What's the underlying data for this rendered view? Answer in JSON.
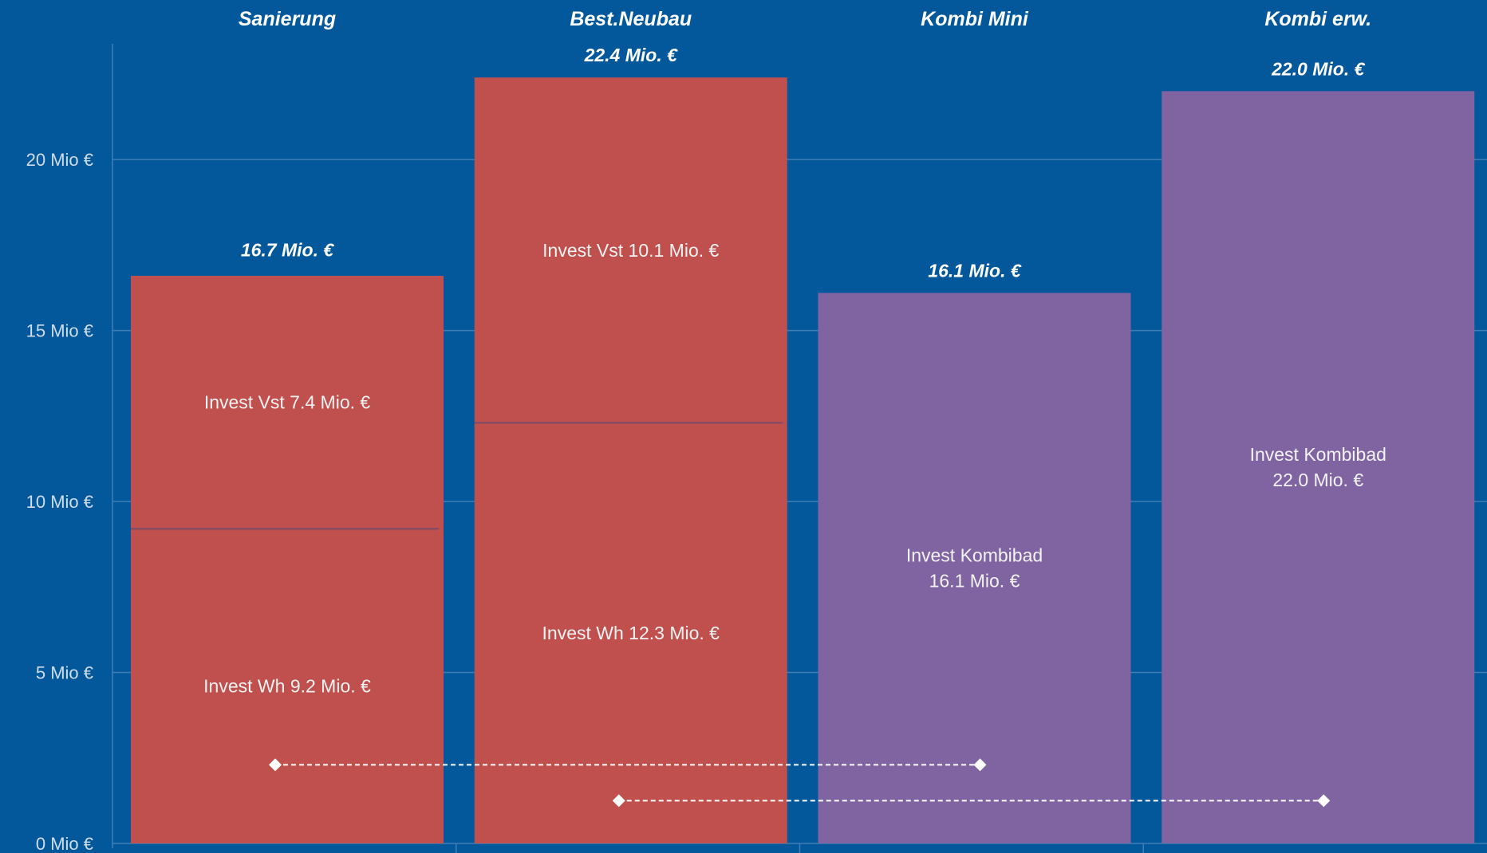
{
  "chart_data": {
    "type": "bar",
    "stacked": true,
    "title": "",
    "xlabel": "",
    "ylabel": "",
    "ylim": [
      0,
      23.5
    ],
    "yticks": [
      0,
      5,
      10,
      15,
      20
    ],
    "ytick_labels": [
      "0 Mio €",
      "5 Mio €",
      "10 Mio €",
      "15 Mio €",
      "20 Mio €"
    ],
    "grid": true,
    "legend": "none",
    "colors": {
      "background": "#03589c",
      "red": "#c0504d",
      "purple": "#8064a2",
      "grid": "#3f7fb5"
    },
    "categories": [
      {
        "name": "Sanierung",
        "total": 16.7,
        "total_label": "16.7 Mio. €",
        "segments": [
          {
            "value": 9.2,
            "color": "#c0504d",
            "label": [
              "Invest Wh 9.2 Mio. €"
            ]
          },
          {
            "value": 7.4,
            "color": "#c0504d",
            "label": [
              "Invest Vst 7.4 Mio. €"
            ]
          }
        ]
      },
      {
        "name": "Best.Neubau",
        "total": 22.4,
        "total_label": "22.4 Mio. €",
        "segments": [
          {
            "value": 12.3,
            "color": "#c0504d",
            "label": [
              "Invest Wh 12.3 Mio. €"
            ]
          },
          {
            "value": 10.1,
            "color": "#c0504d",
            "label": [
              "Invest Vst 10.1 Mio. €"
            ]
          }
        ]
      },
      {
        "name": "Kombi Mini",
        "total": 16.1,
        "total_label": "16.1 Mio. €",
        "segments": [
          {
            "value": 16.1,
            "color": "#8064a2",
            "label": [
              "Invest Kombibad",
              "16.1 Mio. €"
            ]
          }
        ]
      },
      {
        "name": "Kombi erw.",
        "total": 22.0,
        "total_label": "22.0 Mio. €",
        "segments": [
          {
            "value": 22.0,
            "color": "#8064a2",
            "label": [
              "Invest Kombibad",
              "22.0 Mio. €"
            ]
          }
        ]
      }
    ],
    "connectors": [
      {
        "from": 0,
        "to": 2,
        "y": 2.3
      },
      {
        "from": 1,
        "to": 3,
        "y": 1.25
      }
    ]
  }
}
